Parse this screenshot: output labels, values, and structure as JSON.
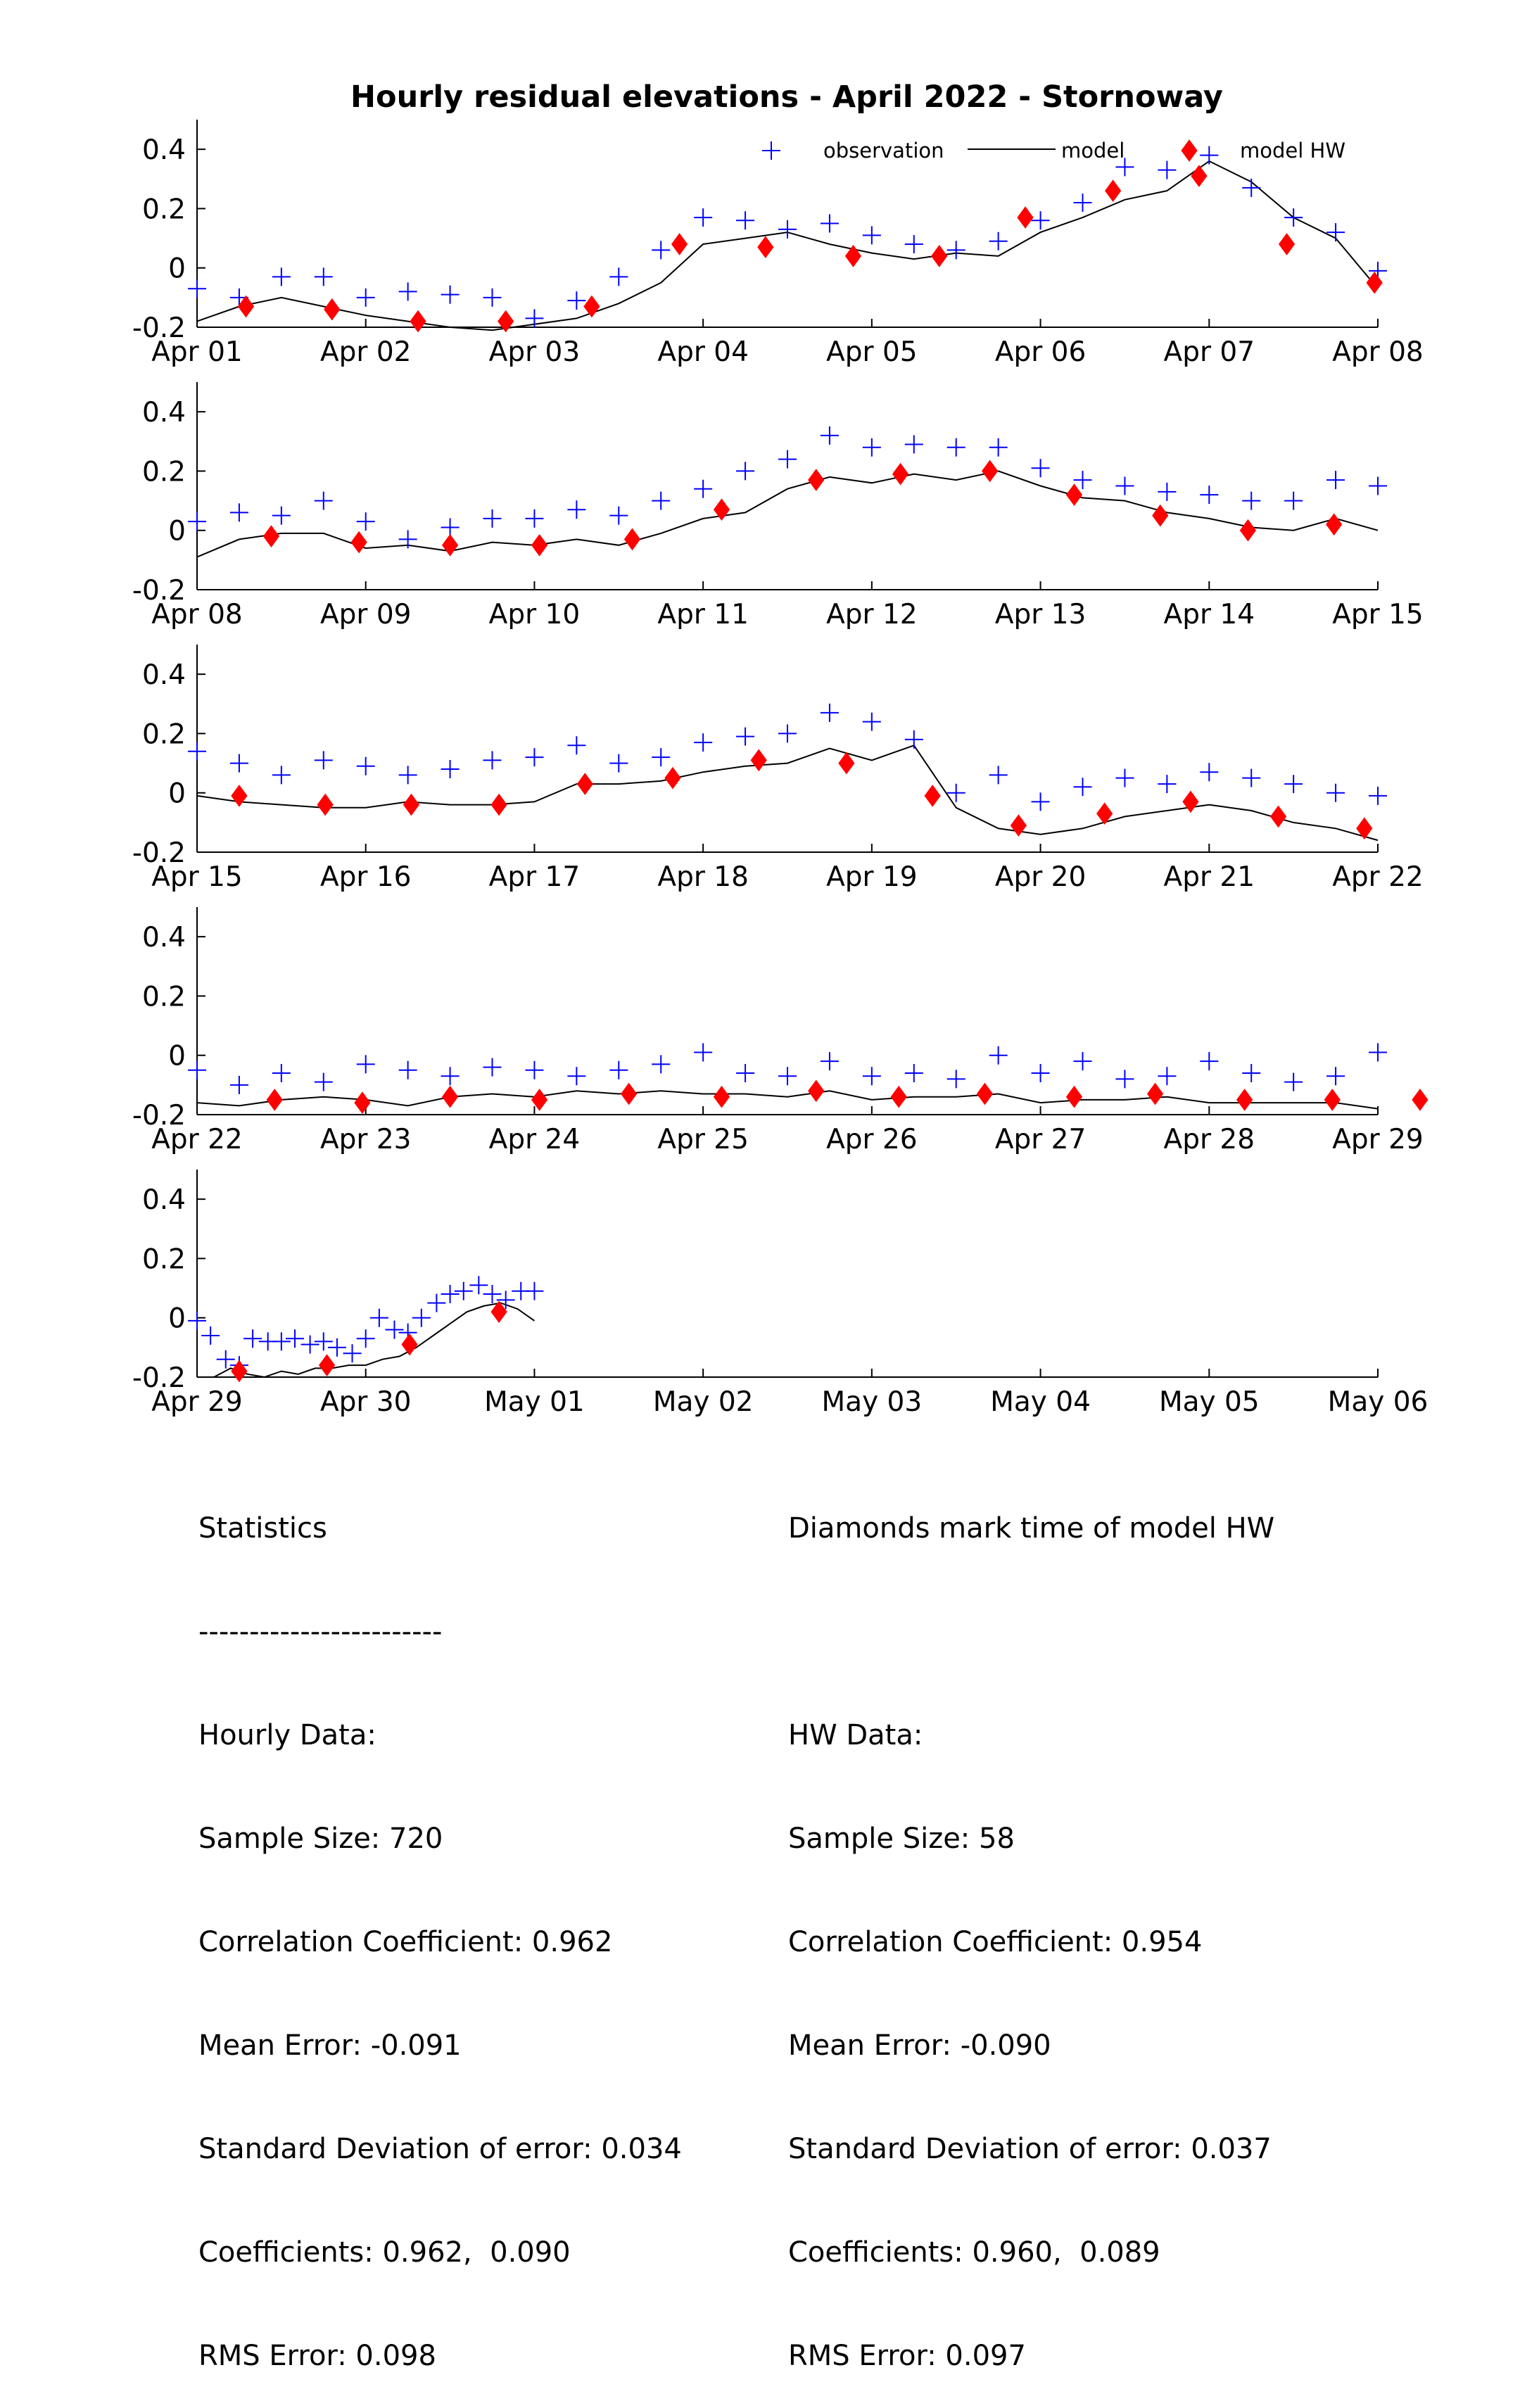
{
  "chart_data": {
    "type": "line",
    "title": "Hourly residual elevations - April  2022 - Stornoway",
    "legend": {
      "position": "top-right",
      "entries": [
        {
          "name": "observation",
          "marker": "plus",
          "color": "#0000ff"
        },
        {
          "name": "model",
          "marker": "line",
          "color": "#000000"
        },
        {
          "name": "model HW",
          "marker": "diamond",
          "color": "#ff0000"
        }
      ]
    },
    "ylim": [
      -0.2,
      0.5
    ],
    "yticks": [
      -0.2,
      0,
      0.2,
      0.4
    ],
    "ytick_labels": [
      "-0.2",
      "0",
      "0.2",
      "0.4"
    ],
    "grid": false,
    "panels": [
      {
        "xticks": [
          "Apr 01",
          "Apr 02",
          "Apr 03",
          "Apr 04",
          "Apr 05",
          "Apr 06",
          "Apr 07",
          "Apr 08"
        ],
        "series": [
          {
            "name": "observation",
            "x": [
              0,
              0.25,
              0.5,
              0.75,
              1,
              1.25,
              1.5,
              1.75,
              2,
              2.25,
              2.5,
              2.75,
              3,
              3.25,
              3.5,
              3.75,
              4,
              4.25,
              4.5,
              4.75,
              5,
              5.25,
              5.5,
              5.75,
              6,
              6.25,
              6.5,
              6.75,
              7
            ],
            "y": [
              -0.07,
              -0.1,
              -0.03,
              -0.03,
              -0.1,
              -0.08,
              -0.09,
              -0.1,
              -0.17,
              -0.11,
              -0.03,
              0.06,
              0.17,
              0.16,
              0.13,
              0.15,
              0.11,
              0.08,
              0.06,
              0.09,
              0.16,
              0.22,
              0.34,
              0.33,
              0.38,
              0.27,
              0.17,
              0.12,
              -0.01
            ]
          },
          {
            "name": "model",
            "x": [
              0,
              0.25,
              0.5,
              0.75,
              1,
              1.25,
              1.5,
              1.75,
              2,
              2.25,
              2.5,
              2.75,
              3,
              3.25,
              3.5,
              3.75,
              4,
              4.25,
              4.5,
              4.75,
              5,
              5.25,
              5.5,
              5.75,
              6,
              6.25,
              6.5,
              6.75,
              7
            ],
            "y": [
              -0.18,
              -0.13,
              -0.1,
              -0.13,
              -0.16,
              -0.18,
              -0.2,
              -0.21,
              -0.19,
              -0.17,
              -0.12,
              -0.05,
              0.08,
              0.1,
              0.12,
              0.08,
              0.05,
              0.03,
              0.05,
              0.04,
              0.12,
              0.17,
              0.23,
              0.26,
              0.36,
              0.29,
              0.17,
              0.1,
              -0.07
            ]
          },
          {
            "name": "model HW",
            "x": [
              0.29,
              0.8,
              1.31,
              1.83,
              2.34,
              2.86,
              3.37,
              3.89,
              4.4,
              4.91,
              5.43,
              5.94,
              6.46,
              6.98
            ],
            "y": [
              -0.13,
              -0.14,
              -0.18,
              -0.18,
              -0.13,
              0.08,
              0.07,
              0.04,
              0.04,
              0.17,
              0.26,
              0.31,
              0.08,
              -0.05
            ]
          }
        ]
      },
      {
        "xticks": [
          "Apr 08",
          "Apr 09",
          "Apr 10",
          "Apr 11",
          "Apr 12",
          "Apr 13",
          "Apr 14",
          "Apr 15"
        ],
        "series": [
          {
            "name": "observation",
            "x": [
              0,
              0.25,
              0.5,
              0.75,
              1,
              1.25,
              1.5,
              1.75,
              2,
              2.25,
              2.5,
              2.75,
              3,
              3.25,
              3.5,
              3.75,
              4,
              4.25,
              4.5,
              4.75,
              5,
              5.25,
              5.5,
              5.75,
              6,
              6.25,
              6.5,
              6.75,
              7
            ],
            "y": [
              0.03,
              0.06,
              0.05,
              0.1,
              0.03,
              -0.03,
              0.01,
              0.04,
              0.04,
              0.07,
              0.05,
              0.1,
              0.14,
              0.2,
              0.24,
              0.32,
              0.28,
              0.29,
              0.28,
              0.28,
              0.21,
              0.17,
              0.15,
              0.13,
              0.12,
              0.1,
              0.1,
              0.17,
              0.15
            ]
          },
          {
            "name": "model",
            "x": [
              0,
              0.25,
              0.5,
              0.75,
              1,
              1.25,
              1.5,
              1.75,
              2,
              2.25,
              2.5,
              2.75,
              3,
              3.25,
              3.5,
              3.75,
              4,
              4.25,
              4.5,
              4.75,
              5,
              5.25,
              5.5,
              5.75,
              6,
              6.25,
              6.5,
              6.75,
              7
            ],
            "y": [
              -0.09,
              -0.03,
              -0.01,
              -0.01,
              -0.06,
              -0.05,
              -0.07,
              -0.04,
              -0.05,
              -0.03,
              -0.05,
              -0.01,
              0.04,
              0.06,
              0.14,
              0.18,
              0.16,
              0.19,
              0.17,
              0.2,
              0.15,
              0.11,
              0.1,
              0.06,
              0.04,
              0.01,
              0.0,
              0.04,
              0.0
            ]
          },
          {
            "name": "model HW",
            "x": [
              0.44,
              0.96,
              1.5,
              2.03,
              2.58,
              3.11,
              3.67,
              4.17,
              4.7,
              5.2,
              5.71,
              6.23,
              6.74
            ],
            "y": [
              -0.02,
              -0.04,
              -0.05,
              -0.05,
              -0.03,
              0.07,
              0.17,
              0.19,
              0.2,
              0.12,
              0.05,
              0.0,
              0.02
            ]
          }
        ]
      },
      {
        "xticks": [
          "Apr 15",
          "Apr 16",
          "Apr 17",
          "Apr 18",
          "Apr 19",
          "Apr 20",
          "Apr 21",
          "Apr 22"
        ],
        "series": [
          {
            "name": "observation",
            "x": [
              0,
              0.25,
              0.5,
              0.75,
              1,
              1.25,
              1.5,
              1.75,
              2,
              2.25,
              2.5,
              2.75,
              3,
              3.25,
              3.5,
              3.75,
              4,
              4.25,
              4.5,
              4.75,
              5,
              5.25,
              5.5,
              5.75,
              6,
              6.25,
              6.5,
              6.75,
              7
            ],
            "y": [
              0.14,
              0.1,
              0.06,
              0.11,
              0.09,
              0.06,
              0.08,
              0.11,
              0.12,
              0.16,
              0.1,
              0.12,
              0.17,
              0.19,
              0.2,
              0.27,
              0.24,
              0.18,
              0.0,
              0.06,
              -0.03,
              0.02,
              0.05,
              0.03,
              0.07,
              0.05,
              0.03,
              0.0,
              -0.01
            ]
          },
          {
            "name": "model",
            "x": [
              0,
              0.25,
              0.5,
              0.75,
              1,
              1.25,
              1.5,
              1.75,
              2,
              2.25,
              2.5,
              2.75,
              3,
              3.25,
              3.5,
              3.75,
              4,
              4.25,
              4.5,
              4.75,
              5,
              5.25,
              5.5,
              5.75,
              6,
              6.25,
              6.5,
              6.75,
              7
            ],
            "y": [
              -0.01,
              -0.03,
              -0.04,
              -0.05,
              -0.05,
              -0.03,
              -0.04,
              -0.04,
              -0.03,
              0.03,
              0.03,
              0.04,
              0.07,
              0.09,
              0.1,
              0.15,
              0.11,
              0.16,
              -0.05,
              -0.12,
              -0.14,
              -0.12,
              -0.08,
              -0.06,
              -0.04,
              -0.06,
              -0.1,
              -0.12,
              -0.16
            ]
          },
          {
            "name": "model HW",
            "x": [
              0.25,
              0.76,
              1.27,
              1.79,
              2.3,
              2.82,
              3.33,
              3.85,
              4.36,
              4.87,
              5.38,
              5.89,
              6.41,
              6.92
            ],
            "y": [
              -0.01,
              -0.04,
              -0.04,
              -0.04,
              0.03,
              0.05,
              0.11,
              0.1,
              -0.01,
              -0.11,
              -0.07,
              -0.03,
              -0.08,
              -0.12
            ]
          }
        ]
      },
      {
        "xticks": [
          "Apr 22",
          "Apr 23",
          "Apr 24",
          "Apr 25",
          "Apr 26",
          "Apr 27",
          "Apr 28",
          "Apr 29"
        ],
        "series": [
          {
            "name": "observation",
            "x": [
              0,
              0.25,
              0.5,
              0.75,
              1,
              1.25,
              1.5,
              1.75,
              2,
              2.25,
              2.5,
              2.75,
              3,
              3.25,
              3.5,
              3.75,
              4,
              4.25,
              4.5,
              4.75,
              5,
              5.25,
              5.5,
              5.75,
              6,
              6.25,
              6.5,
              6.75,
              7
            ],
            "y": [
              -0.05,
              -0.1,
              -0.06,
              -0.09,
              -0.03,
              -0.05,
              -0.07,
              -0.04,
              -0.05,
              -0.07,
              -0.05,
              -0.03,
              0.01,
              -0.06,
              -0.07,
              -0.02,
              -0.07,
              -0.06,
              -0.08,
              0.0,
              -0.06,
              -0.02,
              -0.08,
              -0.07,
              -0.02,
              -0.06,
              -0.09,
              -0.07,
              0.01
            ]
          },
          {
            "name": "model",
            "x": [
              0,
              0.25,
              0.5,
              0.75,
              1,
              1.25,
              1.5,
              1.75,
              2,
              2.25,
              2.5,
              2.75,
              3,
              3.25,
              3.5,
              3.75,
              4,
              4.25,
              4.5,
              4.75,
              5,
              5.25,
              5.5,
              5.75,
              6,
              6.25,
              6.5,
              6.75,
              7
            ],
            "y": [
              -0.16,
              -0.17,
              -0.15,
              -0.14,
              -0.15,
              -0.17,
              -0.14,
              -0.13,
              -0.14,
              -0.12,
              -0.13,
              -0.12,
              -0.13,
              -0.13,
              -0.14,
              -0.12,
              -0.15,
              -0.14,
              -0.14,
              -0.13,
              -0.16,
              -0.15,
              -0.15,
              -0.14,
              -0.16,
              -0.16,
              -0.16,
              -0.16,
              -0.18
            ]
          },
          {
            "name": "model HW",
            "x": [
              0.46,
              0.98,
              1.5,
              2.03,
              2.56,
              3.11,
              3.67,
              4.16,
              4.67,
              5.2,
              5.68,
              6.21,
              6.73,
              7.25
            ],
            "y": [
              -0.15,
              -0.16,
              -0.14,
              -0.15,
              -0.13,
              -0.14,
              -0.12,
              -0.14,
              -0.13,
              -0.14,
              -0.13,
              -0.15,
              -0.15,
              -0.15
            ]
          }
        ]
      },
      {
        "xticks": [
          "Apr 29",
          "Apr 30",
          "May 01",
          "May 02",
          "May 03",
          "May 04",
          "May 05",
          "May 06"
        ],
        "series": [
          {
            "name": "observation",
            "x": [
              0,
              0.08,
              0.17,
              0.25,
              0.33,
              0.42,
              0.5,
              0.58,
              0.67,
              0.75,
              0.83,
              0.92,
              1,
              1.08,
              1.17,
              1.25,
              1.33,
              1.42,
              1.5,
              1.58,
              1.67,
              1.75,
              1.83,
              1.92,
              2
            ],
            "y": [
              -0.01,
              -0.06,
              -0.14,
              -0.16,
              -0.07,
              -0.08,
              -0.08,
              -0.07,
              -0.09,
              -0.08,
              -0.1,
              -0.12,
              -0.07,
              0.0,
              -0.04,
              -0.05,
              0.0,
              0.05,
              0.08,
              0.09,
              0.11,
              0.08,
              0.06,
              0.09,
              0.09
            ]
          },
          {
            "name": "model",
            "x": [
              0,
              0.1,
              0.2,
              0.3,
              0.4,
              0.5,
              0.6,
              0.7,
              0.8,
              0.9,
              1,
              1.1,
              1.2,
              1.3,
              1.4,
              1.5,
              1.6,
              1.7,
              1.8,
              1.9,
              2
            ],
            "y": [
              -0.2,
              -0.2,
              -0.17,
              -0.19,
              -0.2,
              -0.18,
              -0.19,
              -0.17,
              -0.17,
              -0.16,
              -0.16,
              -0.14,
              -0.13,
              -0.1,
              -0.06,
              -0.02,
              0.02,
              0.04,
              0.05,
              0.03,
              -0.01
            ]
          },
          {
            "name": "model HW",
            "x": [
              0.25,
              0.77,
              1.26,
              1.79
            ],
            "y": [
              -0.18,
              -0.16,
              -0.09,
              0.02
            ]
          }
        ]
      }
    ]
  },
  "stats": {
    "left": [
      "Statistics",
      "------------------------",
      "Hourly Data:",
      "Sample Size: 720",
      "Correlation Coefficient: 0.962",
      "Mean Error: -0.091",
      "Standard Deviation of error: 0.034",
      "Coefficients: 0.962,  0.090",
      "RMS Error: 0.098"
    ],
    "right": [
      "Diamonds mark time of model HW",
      "",
      "HW Data:",
      "Sample Size: 58",
      "Correlation Coefficient: 0.954",
      "Mean Error: -0.090",
      "Standard Deviation of error: 0.037",
      "Coefficients: 0.960,  0.089",
      "RMS Error: 0.097"
    ]
  }
}
